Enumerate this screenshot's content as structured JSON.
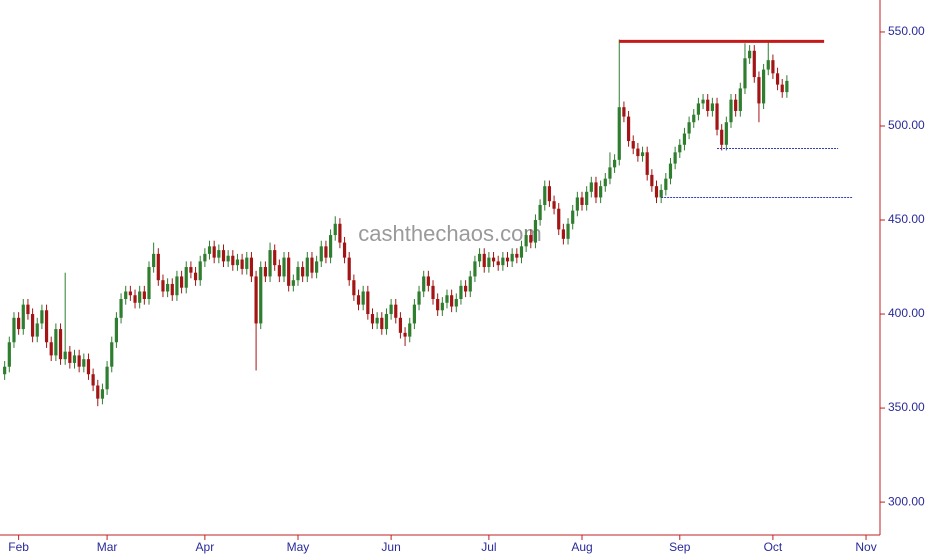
{
  "chart_data": {
    "type": "candlestick",
    "watermark": "cashthechaos.com",
    "x": [
      0,
      1,
      2,
      3,
      4,
      5,
      6,
      7,
      8,
      9,
      10,
      11,
      12,
      13,
      14,
      15,
      16,
      17,
      18,
      19,
      20,
      21,
      22,
      23,
      24,
      25,
      26,
      27,
      28,
      29,
      30,
      31,
      32,
      33,
      34,
      35,
      36,
      37,
      38,
      39,
      40,
      41,
      42,
      43,
      44,
      45,
      46,
      47,
      48,
      49,
      50,
      51,
      52,
      53,
      54,
      55,
      56,
      57,
      58,
      59,
      60,
      61,
      62,
      63,
      64,
      65,
      66,
      67,
      68,
      69,
      70,
      71,
      72,
      73,
      74,
      75,
      76,
      77,
      78,
      79,
      80,
      81,
      82,
      83,
      84,
      85,
      86,
      87,
      88,
      89,
      90,
      91,
      92,
      93,
      94,
      95,
      96,
      97,
      98,
      99,
      100,
      101,
      102,
      103,
      104,
      105,
      106,
      107,
      108,
      109,
      110,
      111,
      112,
      113,
      114,
      115,
      116,
      117,
      118,
      119,
      120,
      121,
      122,
      123,
      124,
      125,
      126,
      127,
      128,
      129,
      130,
      131,
      132,
      133,
      134,
      135,
      136,
      137,
      138,
      139,
      140,
      141,
      142,
      143,
      144,
      145,
      146,
      147,
      148,
      149,
      150,
      151,
      152,
      153,
      154,
      155,
      156,
      157,
      158,
      159,
      160,
      161,
      162,
      163,
      164,
      165,
      166,
      167,
      168
    ],
    "open": [
      368,
      372,
      385,
      398,
      392,
      405,
      400,
      388,
      395,
      402,
      385,
      378,
      392,
      376,
      380,
      374,
      378,
      372,
      376,
      368,
      362,
      355,
      360,
      372,
      385,
      398,
      408,
      412,
      410,
      406,
      412,
      408,
      425,
      432,
      418,
      412,
      416,
      410,
      420,
      414,
      425,
      422,
      418,
      428,
      432,
      436,
      430,
      434,
      428,
      431,
      426,
      429,
      424,
      430,
      420,
      395,
      425,
      420,
      434,
      426,
      420,
      430,
      415,
      418,
      425,
      420,
      430,
      422,
      428,
      436,
      430,
      442,
      448,
      438,
      430,
      418,
      410,
      405,
      412,
      400,
      395,
      398,
      392,
      400,
      405,
      398,
      390,
      388,
      395,
      405,
      412,
      420,
      415,
      408,
      402,
      406,
      410,
      404,
      408,
      415,
      412,
      420,
      428,
      432,
      425,
      430,
      428,
      426,
      430,
      428,
      432,
      430,
      436,
      442,
      438,
      450,
      458,
      468,
      460,
      456,
      445,
      440,
      448,
      455,
      462,
      458,
      465,
      470,
      462,
      468,
      472,
      478,
      482,
      510,
      505,
      492,
      488,
      484,
      486,
      474,
      468,
      462,
      466,
      472,
      480,
      486,
      490,
      496,
      502,
      506,
      512,
      514,
      508,
      512,
      498,
      490,
      502,
      514,
      508,
      520,
      536,
      540,
      526,
      512,
      530,
      535,
      528,
      522,
      518
    ],
    "high": [
      375,
      388,
      401,
      401,
      408,
      408,
      403,
      398,
      405,
      405,
      388,
      395,
      395,
      422,
      383,
      381,
      381,
      379,
      379,
      371,
      365,
      363,
      375,
      388,
      401,
      411,
      415,
      415,
      413,
      415,
      415,
      428,
      438,
      435,
      421,
      419,
      419,
      423,
      423,
      428,
      428,
      425,
      431,
      435,
      439,
      439,
      437,
      437,
      434,
      434,
      432,
      432,
      433,
      433,
      423,
      428,
      428,
      438,
      437,
      429,
      433,
      433,
      421,
      428,
      428,
      433,
      433,
      431,
      439,
      439,
      445,
      452,
      451,
      441,
      433,
      421,
      413,
      415,
      415,
      403,
      401,
      401,
      403,
      408,
      408,
      401,
      393,
      398,
      408,
      415,
      423,
      423,
      418,
      411,
      409,
      413,
      413,
      411,
      418,
      418,
      423,
      431,
      435,
      435,
      433,
      433,
      431,
      433,
      433,
      435,
      435,
      439,
      445,
      445,
      453,
      461,
      471,
      471,
      463,
      459,
      448,
      451,
      458,
      465,
      465,
      468,
      473,
      473,
      471,
      475,
      486,
      485,
      546,
      513,
      508,
      495,
      491,
      489,
      489,
      477,
      471,
      469,
      475,
      483,
      489,
      493,
      499,
      505,
      509,
      515,
      517,
      517,
      515,
      515,
      501,
      505,
      517,
      517,
      523,
      544,
      543,
      543,
      529,
      533,
      545,
      538,
      531,
      525,
      527
    ],
    "low": [
      365,
      369,
      382,
      389,
      389,
      397,
      385,
      385,
      392,
      382,
      375,
      375,
      373,
      373,
      371,
      371,
      369,
      369,
      365,
      359,
      351,
      352,
      357,
      369,
      382,
      395,
      405,
      407,
      403,
      403,
      405,
      405,
      422,
      415,
      409,
      409,
      407,
      407,
      411,
      411,
      419,
      415,
      415,
      425,
      429,
      427,
      427,
      425,
      425,
      423,
      423,
      421,
      421,
      417,
      370,
      392,
      417,
      417,
      423,
      417,
      417,
      412,
      412,
      415,
      417,
      417,
      419,
      419,
      425,
      427,
      427,
      439,
      435,
      427,
      415,
      407,
      402,
      402,
      397,
      392,
      392,
      389,
      389,
      397,
      395,
      387,
      383,
      385,
      392,
      402,
      409,
      412,
      405,
      399,
      399,
      403,
      401,
      401,
      405,
      409,
      409,
      417,
      425,
      422,
      422,
      425,
      423,
      423,
      425,
      425,
      427,
      427,
      433,
      435,
      435,
      447,
      455,
      457,
      453,
      442,
      437,
      437,
      445,
      452,
      455,
      455,
      462,
      459,
      459,
      465,
      469,
      475,
      479,
      502,
      489,
      485,
      481,
      481,
      471,
      465,
      459,
      459,
      463,
      469,
      477,
      483,
      487,
      493,
      499,
      503,
      509,
      505,
      505,
      495,
      487,
      487,
      499,
      505,
      505,
      517,
      533,
      523,
      502,
      509,
      527,
      525,
      519,
      515,
      515
    ],
    "close": [
      372,
      385,
      398,
      392,
      405,
      400,
      388,
      395,
      402,
      385,
      378,
      392,
      376,
      380,
      374,
      378,
      372,
      376,
      368,
      362,
      355,
      360,
      372,
      385,
      398,
      408,
      412,
      410,
      406,
      412,
      408,
      425,
      432,
      418,
      412,
      416,
      410,
      420,
      414,
      425,
      422,
      418,
      428,
      432,
      436,
      430,
      434,
      428,
      431,
      426,
      429,
      424,
      430,
      420,
      395,
      425,
      420,
      434,
      426,
      420,
      430,
      415,
      418,
      425,
      420,
      430,
      422,
      428,
      436,
      430,
      442,
      448,
      438,
      430,
      418,
      410,
      405,
      412,
      400,
      395,
      398,
      392,
      400,
      405,
      398,
      390,
      388,
      395,
      405,
      412,
      420,
      415,
      408,
      402,
      406,
      410,
      404,
      408,
      415,
      412,
      420,
      428,
      432,
      425,
      430,
      428,
      426,
      430,
      428,
      432,
      430,
      436,
      442,
      438,
      450,
      458,
      468,
      460,
      456,
      445,
      440,
      448,
      455,
      462,
      458,
      465,
      470,
      462,
      468,
      472,
      478,
      482,
      510,
      505,
      492,
      488,
      484,
      486,
      474,
      468,
      462,
      466,
      472,
      480,
      486,
      490,
      496,
      502,
      506,
      512,
      514,
      508,
      512,
      498,
      490,
      502,
      514,
      508,
      520,
      536,
      540,
      526,
      512,
      530,
      535,
      528,
      522,
      518,
      524
    ],
    "up_color": "#2f7d2f",
    "down_color": "#a31515",
    "hlines": [
      {
        "value": 545,
        "x": [
          132,
          176
        ],
        "color": "#c41a1a"
      },
      {
        "value": 488,
        "x": [
          153,
          179
        ],
        "color": "#3040b0"
      },
      {
        "value": 462,
        "x": [
          141,
          182
        ],
        "color": "#3040b0"
      }
    ],
    "xlim": [
      -1,
      188
    ],
    "xticks": [
      {
        "value": 3,
        "label": "Feb"
      },
      {
        "value": 22,
        "label": "Mar"
      },
      {
        "value": 43,
        "label": "Apr"
      },
      {
        "value": 63,
        "label": "May"
      },
      {
        "value": 83,
        "label": "Jun"
      },
      {
        "value": 104,
        "label": "Jul"
      },
      {
        "value": 124,
        "label": "Aug"
      },
      {
        "value": 145,
        "label": "Sep"
      },
      {
        "value": 165,
        "label": "Oct"
      },
      {
        "value": 185,
        "label": "Nov"
      }
    ],
    "ylim": [
      282.5,
      567
    ],
    "yticks": [
      {
        "value": 300,
        "label": "300.00"
      },
      {
        "value": 350,
        "label": "350.00"
      },
      {
        "value": 400,
        "label": "400.00"
      },
      {
        "value": 450,
        "label": "450.00"
      },
      {
        "value": 500,
        "label": "500.00"
      },
      {
        "value": 550,
        "label": "550.00"
      }
    ]
  }
}
